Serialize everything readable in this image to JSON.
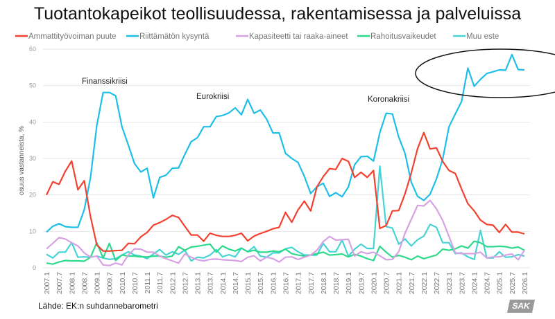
{
  "chart_data": {
    "type": "line",
    "title": "Tuotantokapeikot teollisuudessa, rakentamisessa ja palveluissa",
    "xlabel": "",
    "ylabel": "osuus vastanneista, %",
    "ylim": [
      0,
      60
    ],
    "yticks": [
      0,
      10,
      20,
      30,
      40,
      50,
      60
    ],
    "grid": true,
    "legend_position": "top",
    "x_tick_labels": [
      "2007.1",
      "2007.7",
      "2008.1",
      "2008.7",
      "2009.1",
      "2009.7",
      "2010.1",
      "2010.7",
      "2011.1",
      "2011.7",
      "2012.1",
      "2012.7",
      "2013.1",
      "2013.7",
      "2014.1",
      "2014.7",
      "2015.1",
      "2015.7",
      "2016.1",
      "2016.7",
      "2017.1",
      "2017.7",
      "2018.1",
      "2018.7",
      "2019.1",
      "2019.7",
      "2020.1",
      "2020.7",
      "2021.1",
      "2021.7",
      "2022.1",
      "2022.7",
      "2023.1",
      "2023.7",
      "2024.1",
      "2024.7",
      "2025.1",
      "2025.7",
      "2026.1"
    ],
    "x_start": "2007.1",
    "x_frequency": "quarterly",
    "series": [
      {
        "name": "Ammattityövoiman puute",
        "color": "#f4402e",
        "values": [
          20,
          23.6,
          22.9,
          26.5,
          29.3,
          21.4,
          23.9,
          14,
          6.3,
          4.6,
          4.6,
          4.7,
          4.8,
          6.7,
          6.6,
          8.5,
          9.7,
          11.7,
          12.4,
          13.3,
          14.4,
          13.8,
          11.4,
          9.0,
          9.0,
          7.3,
          9.5,
          8.9,
          8.6,
          8.6,
          8.9,
          9.5,
          7.4,
          8.7,
          9.4,
          10.0,
          10.7,
          11.1,
          15.2,
          12.5,
          15.9,
          18.3,
          15.6,
          22.2,
          25,
          27.2,
          27,
          30,
          29.2,
          24.8,
          26.2,
          24.8,
          26.7,
          10.8,
          11.6,
          15.6,
          15.7,
          20.3,
          26,
          32.7,
          37.1,
          32.6,
          32.9,
          29.2,
          26.7,
          25.9,
          21.6,
          17.6,
          15.6,
          13.1,
          11.9,
          11.7,
          9.7,
          11.9,
          9.8,
          9.8,
          9.3
        ]
      },
      {
        "name": "Riittämätön kysyntä",
        "color": "#1dbfe8",
        "values": [
          9.8,
          11.4,
          12.1,
          11.3,
          11.1,
          11.1,
          15.9,
          24.8,
          39,
          48.1,
          48.1,
          47.2,
          38.7,
          33.7,
          28.6,
          26.3,
          27.3,
          19.2,
          24.8,
          25.4,
          27.3,
          27.4,
          31.1,
          34.6,
          35.7,
          38.7,
          38.7,
          41.5,
          41.8,
          42.5,
          43.9,
          42,
          46.2,
          42.4,
          43.3,
          40.8,
          37,
          37,
          31.4,
          30,
          28.9,
          25.1,
          20.4,
          22.2,
          23.2,
          19.6,
          20.6,
          19.5,
          22.2,
          28.3,
          30.5,
          30.6,
          29.3,
          37.1,
          42.4,
          42.2,
          35.9,
          31.4,
          23.5,
          19.6,
          18.5,
          20.2,
          24.4,
          29.8,
          38.7,
          42.2,
          45.6,
          54.8,
          49.8,
          51.7,
          53.3,
          53.8,
          54.3,
          54.2,
          58.5,
          54.4,
          54.3
        ]
      },
      {
        "name": "Kapasiteetti tai raaka-aineet",
        "color": "#d7a1e3",
        "values": [
          5.2,
          6.7,
          8.3,
          7.9,
          6.9,
          6,
          4.1,
          2.9,
          3.2,
          0.8,
          0.6,
          1.3,
          0.8,
          3.5,
          5.2,
          5.1,
          4.3,
          4.3,
          3.2,
          2.5,
          1.9,
          1.3,
          3.8,
          2.9,
          2.2,
          1.9,
          2.3,
          2.4,
          2.2,
          2.1,
          2,
          1.7,
          2.9,
          3.3,
          1.9,
          2.9,
          2.5,
          1.6,
          2.9,
          3,
          2.3,
          2.9,
          3.5,
          4.8,
          7.2,
          8.6,
          7.6,
          7.7,
          7.8,
          3.2,
          4.4,
          3.9,
          4.3,
          3.3,
          2.2,
          2.3,
          4.4,
          9.5,
          13.3,
          17.1,
          17,
          18.5,
          16.2,
          13,
          8.6,
          4.1,
          3.9,
          3.9,
          3.9,
          4.3,
          2.7,
          3,
          3,
          3.5,
          3.8,
          2.2,
          4.8
        ]
      },
      {
        "name": "Rahoitusvaikeudet",
        "color": "#2dd98c",
        "values": [
          1.3,
          1,
          1.6,
          2,
          1.9,
          1.9,
          1.8,
          2.9,
          6.9,
          2.7,
          6.7,
          2,
          3.5,
          3.2,
          3.2,
          3,
          3,
          3.2,
          3.2,
          2.9,
          3.2,
          5.8,
          4.8,
          5.7,
          5.9,
          6.2,
          6.5,
          4.3,
          6,
          5.1,
          4.6,
          5.4,
          4.4,
          4.8,
          4.3,
          4.3,
          4.6,
          4.4,
          5.1,
          3.9,
          3.5,
          3.2,
          3.5,
          3.9,
          4.3,
          3.5,
          3.6,
          3.8,
          3,
          3.7,
          3.2,
          2.5,
          2,
          5.9,
          4.3,
          2.9,
          3.4,
          2.9,
          2.2,
          3.2,
          2.5,
          3,
          3.5,
          5.1,
          4.8,
          5.2,
          6,
          5.4,
          7.3,
          6.9,
          5.8,
          5.8,
          5.9,
          5.8,
          5.4,
          5.7,
          4.8
        ]
      },
      {
        "name": "Muu este",
        "color": "#45d3d6",
        "values": [
          3.7,
          2.7,
          4.3,
          4.3,
          6.9,
          2.9,
          3,
          2.9,
          3.2,
          2.7,
          2.3,
          2.5,
          3.5,
          4.4,
          3.5,
          3.2,
          2.5,
          3.8,
          5,
          3.5,
          4.4,
          3.7,
          4.8,
          1.9,
          2.9,
          2.7,
          3.5,
          5,
          3,
          3.6,
          3,
          5.4,
          4.4,
          5.8,
          3.2,
          2.9,
          4.1,
          4.1,
          5.2,
          5.6,
          4.4,
          3.5,
          3.5,
          3.5,
          6.7,
          4.4,
          4.4,
          7.6,
          3.2,
          5.1,
          6.5,
          5.3,
          5.3,
          27.9,
          11.3,
          10.9,
          6.5,
          7.9,
          6,
          7.7,
          8.7,
          11.9,
          11.1,
          6.9,
          6.9,
          3.9,
          4.1,
          3,
          2.3,
          10.3,
          2.7,
          2.7,
          4.4,
          2.9,
          3,
          3.6,
          3.2
        ]
      }
    ],
    "annotations": [
      "Finanssikriisi",
      "Eurokriisi",
      "Koronakriisi"
    ],
    "highlight": "ellipse around 2023.7–2026.1 of Riittämätön kysyntä"
  },
  "footer": {
    "source": "Lähde: EK:n suhdannebarometri",
    "logo": "SAK"
  }
}
